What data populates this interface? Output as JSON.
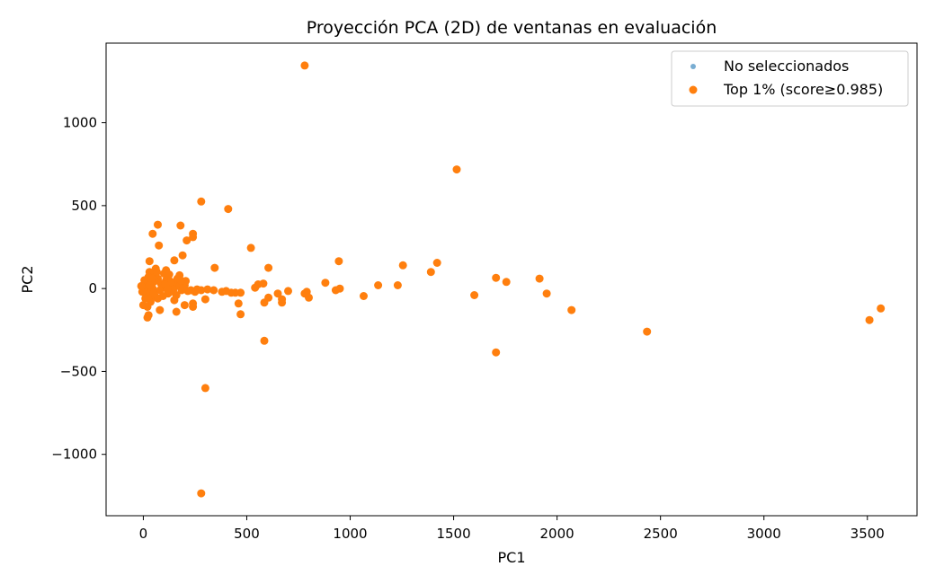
{
  "chart_data": {
    "type": "scatter",
    "title": "Proyección PCA (2D) de ventanas en evaluación",
    "xlabel": "PC1",
    "ylabel": "PC2",
    "xlim": [
      -180,
      3740
    ],
    "ylim": [
      -1370,
      1480
    ],
    "xticks": [
      0,
      500,
      1000,
      1500,
      2000,
      2500,
      3000,
      3500
    ],
    "yticks": [
      -1000,
      -500,
      0,
      500,
      1000
    ],
    "xtick_labels": [
      "0",
      "500",
      "1000",
      "1500",
      "2000",
      "2500",
      "3000",
      "3500"
    ],
    "ytick_labels": [
      "−1000",
      "−500",
      "0",
      "500",
      "1000"
    ],
    "grid": false,
    "legend_position": "top-right",
    "series": [
      {
        "name": "No seleccionados",
        "color": "#1f77b4",
        "points": []
      },
      {
        "name": "Top 1% (score≥0.985)",
        "color": "#ff7f0e",
        "points": [
          [
            780,
            1345
          ],
          [
            1515,
            718
          ],
          [
            280,
            525
          ],
          [
            410,
            480
          ],
          [
            70,
            385
          ],
          [
            180,
            380
          ],
          [
            45,
            330
          ],
          [
            240,
            330
          ],
          [
            240,
            310
          ],
          [
            210,
            290
          ],
          [
            75,
            260
          ],
          [
            520,
            245
          ],
          [
            190,
            200
          ],
          [
            945,
            165
          ],
          [
            30,
            165
          ],
          [
            1420,
            155
          ],
          [
            1255,
            140
          ],
          [
            345,
            125
          ],
          [
            605,
            125
          ],
          [
            1390,
            100
          ],
          [
            110,
            110
          ],
          [
            150,
            170
          ],
          [
            1705,
            65
          ],
          [
            1915,
            60
          ],
          [
            1755,
            40
          ],
          [
            880,
            35
          ],
          [
            1135,
            20
          ],
          [
            1230,
            20
          ],
          [
            555,
            25
          ],
          [
            580,
            30
          ],
          [
            540,
            5
          ],
          [
            950,
            0
          ],
          [
            930,
            -10
          ],
          [
            700,
            -15
          ],
          [
            790,
            -20
          ],
          [
            780,
            -30
          ],
          [
            650,
            -30
          ],
          [
            1950,
            -30
          ],
          [
            1600,
            -40
          ],
          [
            1065,
            -45
          ],
          [
            800,
            -55
          ],
          [
            605,
            -55
          ],
          [
            670,
            -65
          ],
          [
            670,
            -85
          ],
          [
            470,
            -25
          ],
          [
            445,
            -25
          ],
          [
            425,
            -25
          ],
          [
            400,
            -15
          ],
          [
            380,
            -20
          ],
          [
            340,
            -10
          ],
          [
            310,
            -5
          ],
          [
            280,
            -10
          ],
          [
            260,
            -5
          ],
          [
            250,
            -20
          ],
          [
            230,
            -10
          ],
          [
            215,
            -15
          ],
          [
            200,
            20
          ],
          [
            190,
            40
          ],
          [
            175,
            80
          ],
          [
            165,
            60
          ],
          [
            155,
            30
          ],
          [
            140,
            10
          ],
          [
            130,
            -20
          ],
          [
            120,
            -30
          ],
          [
            110,
            50
          ],
          [
            100,
            90
          ],
          [
            90,
            20
          ],
          [
            80,
            -10
          ],
          [
            70,
            60
          ],
          [
            60,
            120
          ],
          [
            55,
            80
          ],
          [
            50,
            40
          ],
          [
            45,
            0
          ],
          [
            40,
            -40
          ],
          [
            35,
            -80
          ],
          [
            30,
            100
          ],
          [
            25,
            70
          ],
          [
            20,
            30
          ],
          [
            15,
            -20
          ],
          [
            10,
            10
          ],
          [
            5,
            50
          ],
          [
            0,
            0
          ],
          [
            -5,
            -20
          ],
          [
            -10,
            15
          ],
          [
            20,
            -110
          ],
          [
            25,
            -160
          ],
          [
            20,
            -175
          ],
          [
            0,
            -100
          ],
          [
            80,
            -130
          ],
          [
            160,
            -140
          ],
          [
            200,
            -100
          ],
          [
            240,
            -110
          ],
          [
            240,
            -90
          ],
          [
            300,
            -65
          ],
          [
            460,
            -90
          ],
          [
            470,
            -155
          ],
          [
            585,
            -85
          ],
          [
            2070,
            -130
          ],
          [
            3510,
            -190
          ],
          [
            3565,
            -120
          ],
          [
            2435,
            -260
          ],
          [
            1705,
            -385
          ],
          [
            585,
            -315
          ],
          [
            300,
            -600
          ],
          [
            280,
            -1235
          ],
          [
            120,
            60
          ],
          [
            135,
            40
          ],
          [
            145,
            -5
          ],
          [
            160,
            -40
          ],
          [
            175,
            15
          ],
          [
            185,
            -10
          ],
          [
            195,
            5
          ],
          [
            205,
            45
          ],
          [
            60,
            -50
          ],
          [
            70,
            -60
          ],
          [
            85,
            30
          ],
          [
            95,
            -45
          ],
          [
            105,
            25
          ],
          [
            115,
            -5
          ],
          [
            125,
            85
          ],
          [
            40,
            60
          ],
          [
            50,
            -30
          ],
          [
            30,
            20
          ],
          [
            10,
            -60
          ],
          [
            65,
            100
          ],
          [
            150,
            -70
          ],
          [
            180,
            50
          ]
        ]
      }
    ]
  }
}
